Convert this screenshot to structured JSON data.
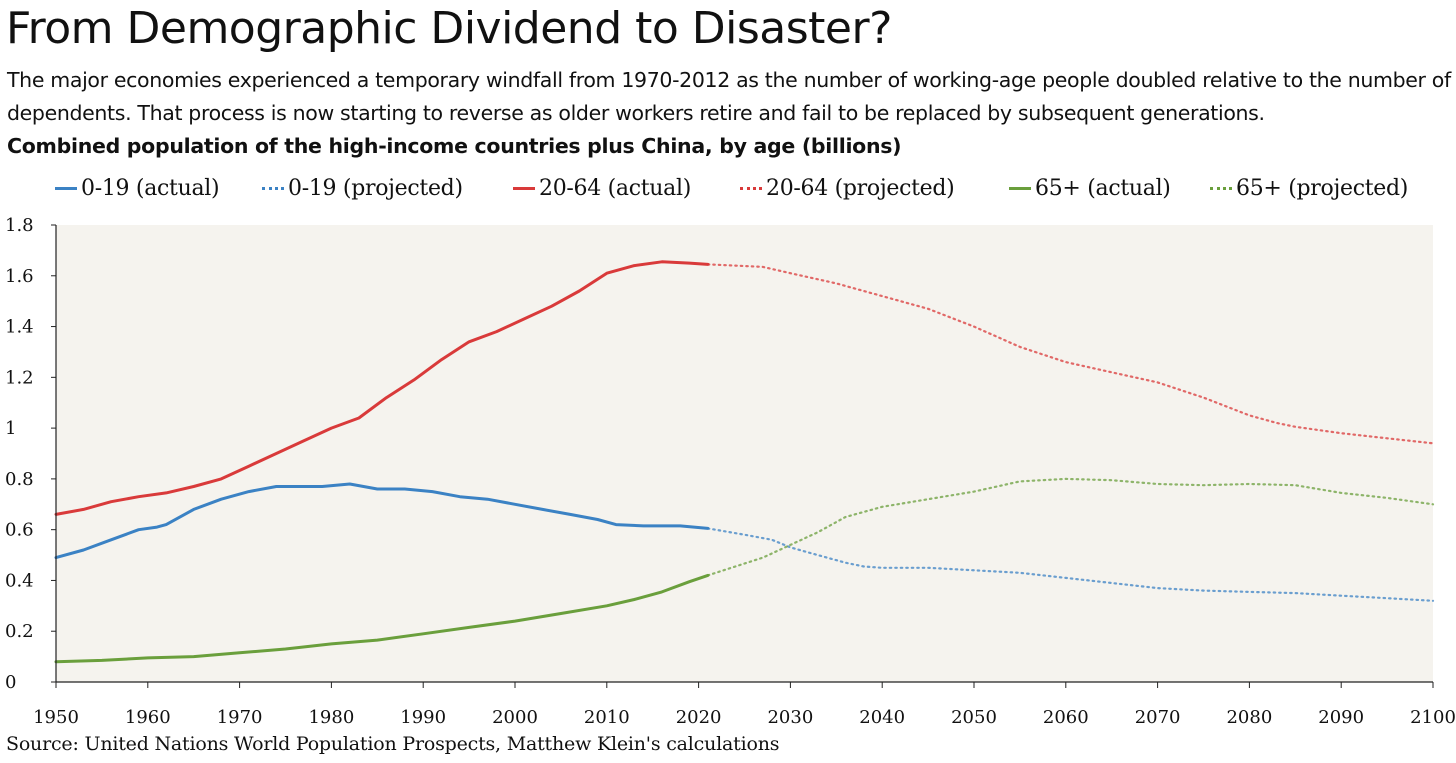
{
  "header": {
    "title": "From Demographic Dividend to Disaster?",
    "subtitle": "The major economies experienced a temporary windfall from 1970-2012 as the number of working-age people doubled relative to the number of dependents. That process is now starting to reverse as older workers retire and fail to be replaced by subsequent generations.",
    "chart_heading": "Combined population of the high-income countries plus China, by age (billions)"
  },
  "source": "Source: United Nations World Population Prospects, Matthew Klein's calculations",
  "colors": {
    "blue": "#3b82c4",
    "red": "#d93a3a",
    "green": "#6a9f3c",
    "plot_bg": "#f5f3ee",
    "axis": "#222222"
  },
  "chart_data": {
    "type": "line",
    "title": "Combined population of the high-income countries plus China, by age (billions)",
    "xlabel": "",
    "ylabel": "",
    "xlim": [
      1950,
      2100
    ],
    "ylim": [
      0,
      1.8
    ],
    "x_ticks": [
      "1950",
      "1960",
      "1970",
      "1980",
      "1990",
      "2000",
      "2010",
      "2020",
      "2030",
      "2040",
      "2050",
      "2060",
      "2070",
      "2080",
      "2090",
      "2100"
    ],
    "y_ticks": [
      "0",
      "0.2",
      "0.4",
      "0.6",
      "0.8",
      "1",
      "1.2",
      "1.4",
      "1.6",
      "1.8"
    ],
    "grid": false,
    "legend_position": "top",
    "series": [
      {
        "name": "0-19 (actual)",
        "color": "#3b82c4",
        "style": "solid",
        "points": [
          [
            1950,
            0.49
          ],
          [
            1953,
            0.52
          ],
          [
            1956,
            0.56
          ],
          [
            1959,
            0.6
          ],
          [
            1961,
            0.61
          ],
          [
            1962,
            0.62
          ],
          [
            1965,
            0.68
          ],
          [
            1968,
            0.72
          ],
          [
            1971,
            0.75
          ],
          [
            1974,
            0.77
          ],
          [
            1977,
            0.77
          ],
          [
            1979,
            0.77
          ],
          [
            1982,
            0.78
          ],
          [
            1985,
            0.76
          ],
          [
            1988,
            0.76
          ],
          [
            1991,
            0.75
          ],
          [
            1994,
            0.73
          ],
          [
            1997,
            0.72
          ],
          [
            2000,
            0.7
          ],
          [
            2003,
            0.68
          ],
          [
            2006,
            0.66
          ],
          [
            2009,
            0.64
          ],
          [
            2011,
            0.62
          ],
          [
            2014,
            0.615
          ],
          [
            2018,
            0.615
          ],
          [
            2021,
            0.605
          ]
        ]
      },
      {
        "name": "0-19 (projected)",
        "color": "#3b82c4",
        "style": "dotted",
        "points": [
          [
            2021,
            0.605
          ],
          [
            2025,
            0.58
          ],
          [
            2028,
            0.56
          ],
          [
            2030,
            0.53
          ],
          [
            2033,
            0.5
          ],
          [
            2036,
            0.47
          ],
          [
            2038,
            0.455
          ],
          [
            2040,
            0.45
          ],
          [
            2045,
            0.45
          ],
          [
            2050,
            0.44
          ],
          [
            2055,
            0.43
          ],
          [
            2060,
            0.41
          ],
          [
            2065,
            0.39
          ],
          [
            2070,
            0.37
          ],
          [
            2075,
            0.36
          ],
          [
            2080,
            0.355
          ],
          [
            2085,
            0.35
          ],
          [
            2090,
            0.34
          ],
          [
            2095,
            0.33
          ],
          [
            2100,
            0.32
          ]
        ]
      },
      {
        "name": "20-64 (actual)",
        "color": "#d93a3a",
        "style": "solid",
        "points": [
          [
            1950,
            0.66
          ],
          [
            1953,
            0.68
          ],
          [
            1956,
            0.71
          ],
          [
            1959,
            0.73
          ],
          [
            1962,
            0.745
          ],
          [
            1965,
            0.77
          ],
          [
            1968,
            0.8
          ],
          [
            1971,
            0.85
          ],
          [
            1974,
            0.9
          ],
          [
            1977,
            0.95
          ],
          [
            1980,
            1.0
          ],
          [
            1983,
            1.04
          ],
          [
            1986,
            1.12
          ],
          [
            1989,
            1.19
          ],
          [
            1992,
            1.27
          ],
          [
            1995,
            1.34
          ],
          [
            1998,
            1.38
          ],
          [
            2001,
            1.43
          ],
          [
            2004,
            1.48
          ],
          [
            2007,
            1.54
          ],
          [
            2010,
            1.61
          ],
          [
            2013,
            1.64
          ],
          [
            2016,
            1.655
          ],
          [
            2019,
            1.65
          ],
          [
            2021,
            1.645
          ]
        ]
      },
      {
        "name": "20-64 (projected)",
        "color": "#d93a3a",
        "style": "dotted",
        "points": [
          [
            2021,
            1.645
          ],
          [
            2024,
            1.64
          ],
          [
            2027,
            1.635
          ],
          [
            2030,
            1.61
          ],
          [
            2035,
            1.57
          ],
          [
            2040,
            1.52
          ],
          [
            2045,
            1.47
          ],
          [
            2050,
            1.4
          ],
          [
            2055,
            1.32
          ],
          [
            2060,
            1.26
          ],
          [
            2065,
            1.22
          ],
          [
            2070,
            1.18
          ],
          [
            2075,
            1.12
          ],
          [
            2080,
            1.05
          ],
          [
            2083,
            1.02
          ],
          [
            2085,
            1.005
          ],
          [
            2090,
            0.98
          ],
          [
            2095,
            0.96
          ],
          [
            2100,
            0.94
          ]
        ]
      },
      {
        "name": "65+ (actual)",
        "color": "#6a9f3c",
        "style": "solid",
        "points": [
          [
            1950,
            0.08
          ],
          [
            1955,
            0.085
          ],
          [
            1960,
            0.095
          ],
          [
            1965,
            0.1
          ],
          [
            1970,
            0.115
          ],
          [
            1975,
            0.13
          ],
          [
            1980,
            0.15
          ],
          [
            1985,
            0.165
          ],
          [
            1990,
            0.19
          ],
          [
            1995,
            0.215
          ],
          [
            2000,
            0.24
          ],
          [
            2005,
            0.27
          ],
          [
            2010,
            0.3
          ],
          [
            2013,
            0.325
          ],
          [
            2016,
            0.355
          ],
          [
            2019,
            0.395
          ],
          [
            2021,
            0.42
          ]
        ]
      },
      {
        "name": "65+ (projected)",
        "color": "#6a9f3c",
        "style": "dotted",
        "points": [
          [
            2021,
            0.42
          ],
          [
            2024,
            0.455
          ],
          [
            2027,
            0.49
          ],
          [
            2030,
            0.54
          ],
          [
            2033,
            0.59
          ],
          [
            2036,
            0.65
          ],
          [
            2040,
            0.69
          ],
          [
            2045,
            0.72
          ],
          [
            2050,
            0.75
          ],
          [
            2055,
            0.79
          ],
          [
            2060,
            0.8
          ],
          [
            2065,
            0.795
          ],
          [
            2070,
            0.78
          ],
          [
            2075,
            0.775
          ],
          [
            2080,
            0.78
          ],
          [
            2085,
            0.775
          ],
          [
            2090,
            0.745
          ],
          [
            2095,
            0.725
          ],
          [
            2100,
            0.7
          ]
        ]
      }
    ]
  }
}
